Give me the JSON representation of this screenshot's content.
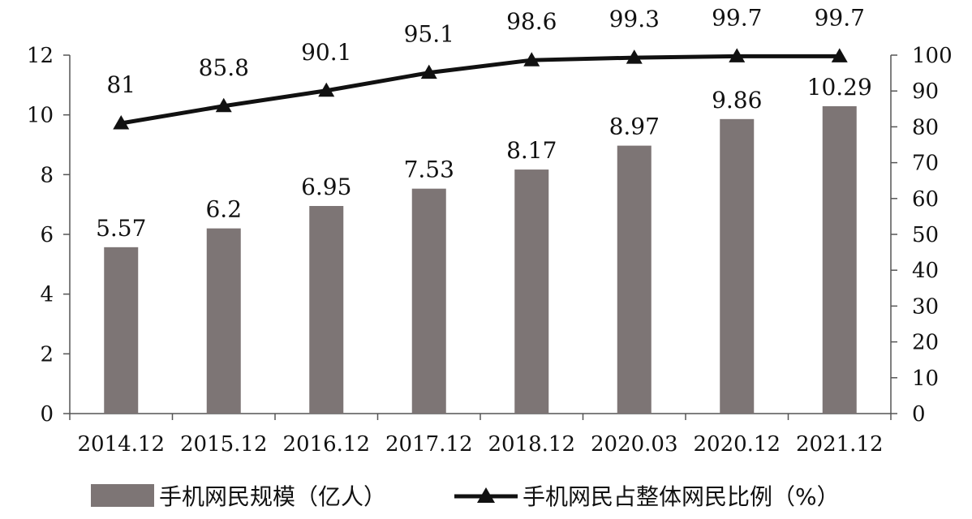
{
  "chart_data": {
    "type": "bar",
    "categories": [
      "2014.12",
      "2015.12",
      "2016.12",
      "2017.12",
      "2018.12",
      "2020.03",
      "2020.12",
      "2021.12"
    ],
    "series": [
      {
        "name": "手机网民规模（亿人）",
        "type": "bar",
        "axis": "left",
        "values": [
          5.57,
          6.2,
          6.95,
          7.53,
          8.17,
          8.97,
          9.86,
          10.29
        ],
        "labels": [
          "5.57",
          "6.2",
          "6.95",
          "7.53",
          "8.17",
          "8.97",
          "9.86",
          "10.29"
        ],
        "color": "#7d7575"
      },
      {
        "name": "手机网民占整体网民比例（%）",
        "type": "line",
        "axis": "right",
        "marker": "triangle",
        "values": [
          81,
          85.8,
          90.1,
          95.1,
          98.6,
          99.3,
          99.7,
          99.7
        ],
        "labels": [
          "81",
          "85.8",
          "90.1",
          "95.1",
          "98.6",
          "99.3",
          "99.7",
          "99.7"
        ],
        "color": "#111111"
      }
    ],
    "y_left": {
      "min": 0,
      "max": 12,
      "ticks": [
        "0",
        "2",
        "4",
        "6",
        "8",
        "10",
        "12"
      ]
    },
    "y_right": {
      "min": 0,
      "max": 100,
      "ticks": [
        "0",
        "10",
        "20",
        "30",
        "40",
        "50",
        "60",
        "70",
        "80",
        "90",
        "100"
      ]
    },
    "title": "",
    "xlabel": "",
    "ylabel": "",
    "grid": false,
    "legend": {
      "position": "bottom"
    }
  }
}
